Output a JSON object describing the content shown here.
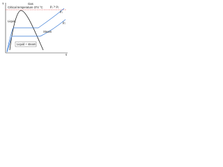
{
  "labels": {
    "gas": "Gas",
    "critical": "Critical temperature 374 °C",
    "pressure_relation": "p₁ > p₂",
    "p1": "p₁",
    "p2": "p₂",
    "liquid": "Liquid",
    "steam": "Steam",
    "wet": "Liquid + steam",
    "t_axis": "T",
    "s_axis": "s"
  }
}
